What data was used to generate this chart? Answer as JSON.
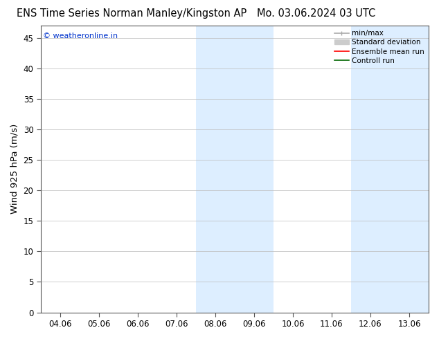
{
  "title_left": "ENS Time Series Norman Manley/Kingston AP",
  "title_right": "Mo. 03.06.2024 03 UTC",
  "ylabel": "Wind 925 hPa (m/s)",
  "watermark": "© weatheronline.in",
  "watermark_color": "#0033cc",
  "ylim": [
    0,
    47
  ],
  "yticks": [
    0,
    5,
    10,
    15,
    20,
    25,
    30,
    35,
    40,
    45
  ],
  "xtick_labels": [
    "04.06",
    "05.06",
    "06.06",
    "07.06",
    "08.06",
    "09.06",
    "10.06",
    "11.06",
    "12.06",
    "13.06"
  ],
  "shade_color": "#ddeeff",
  "background_color": "#ffffff",
  "legend_items": [
    {
      "label": "min/max",
      "color": "#aaaaaa",
      "lw": 1.2,
      "style": "minmax"
    },
    {
      "label": "Standard deviation",
      "color": "#cccccc",
      "lw": 6,
      "style": "band"
    },
    {
      "label": "Ensemble mean run",
      "color": "#ff0000",
      "lw": 1.2,
      "style": "line"
    },
    {
      "label": "Controll run",
      "color": "#006600",
      "lw": 1.2,
      "style": "line"
    }
  ],
  "title_fontsize": 10.5,
  "axis_fontsize": 9.5,
  "tick_fontsize": 8.5,
  "watermark_fontsize": 8
}
